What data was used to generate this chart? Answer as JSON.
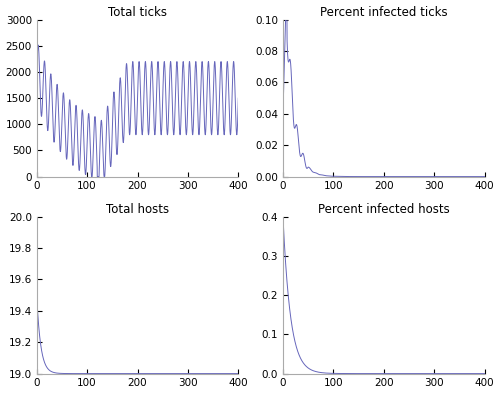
{
  "title_tl": "Total ticks",
  "title_tr": "Percent infected ticks",
  "title_bl": "Total hosts",
  "title_br": "Percent infected hosts",
  "line_color": "#6666bb",
  "line_width": 0.7,
  "figsize": [
    5.0,
    3.94
  ],
  "dpi": 100,
  "ylim_tl": [
    0,
    3000
  ],
  "ylim_tr": [
    0,
    0.1
  ],
  "ylim_bl": [
    19.0,
    20.0
  ],
  "ylim_br": [
    0,
    0.4
  ],
  "xlim": [
    0,
    400
  ],
  "yticks_tl": [
    0,
    500,
    1000,
    1500,
    2000,
    2500,
    3000
  ],
  "yticks_tr": [
    0,
    0.02,
    0.04,
    0.06,
    0.08,
    0.1
  ],
  "yticks_bl": [
    19.0,
    19.2,
    19.4,
    19.6,
    19.8,
    20.0
  ],
  "yticks_br": [
    0,
    0.1,
    0.2,
    0.3,
    0.4
  ],
  "xticks": [
    0,
    100,
    200,
    300,
    400
  ]
}
